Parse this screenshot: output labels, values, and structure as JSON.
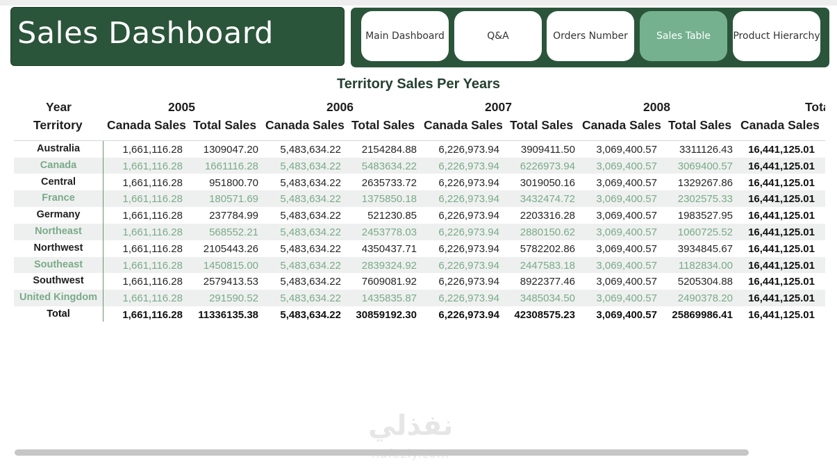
{
  "header": {
    "title": "Sales Dashboard"
  },
  "nav": {
    "buttons": [
      {
        "label": "Main Dashboard",
        "active": false
      },
      {
        "label": "Q&A",
        "active": false
      },
      {
        "label": "Orders Number",
        "active": false
      },
      {
        "label": "Sales Table",
        "active": true
      },
      {
        "label": "Product Hierarchy",
        "active": false
      }
    ]
  },
  "table": {
    "title": "Territory Sales Per Years",
    "year_label": "Year",
    "territory_label": "Territory",
    "years": [
      "2005",
      "2006",
      "2007",
      "2008",
      "Total"
    ],
    "subheaders": [
      "Canada Sales",
      "Total Sales",
      "Canada Sales",
      "Total Sales",
      "Canada Sales",
      "Total Sales",
      "Canada Sales",
      "Total Sales",
      "Canada Sales"
    ],
    "rows": [
      {
        "territory": "Australia",
        "values": [
          "1,661,116.28",
          "1309047.20",
          "5,483,634.22",
          "2154284.88",
          "6,226,973.94",
          "3909411.50",
          "3,069,400.57",
          "3311126.43",
          "16,441,125.01"
        ]
      },
      {
        "territory": "Canada",
        "values": [
          "1,661,116.28",
          "1661116.28",
          "5,483,634.22",
          "5483634.22",
          "6,226,973.94",
          "6226973.94",
          "3,069,400.57",
          "3069400.57",
          "16,441,125.01"
        ]
      },
      {
        "territory": "Central",
        "values": [
          "1,661,116.28",
          "951800.70",
          "5,483,634.22",
          "2635733.72",
          "6,226,973.94",
          "3019050.16",
          "3,069,400.57",
          "1329267.86",
          "16,441,125.01"
        ]
      },
      {
        "territory": "France",
        "values": [
          "1,661,116.28",
          "180571.69",
          "5,483,634.22",
          "1375850.18",
          "6,226,973.94",
          "3432474.72",
          "3,069,400.57",
          "2302575.33",
          "16,441,125.01"
        ]
      },
      {
        "territory": "Germany",
        "values": [
          "1,661,116.28",
          "237784.99",
          "5,483,634.22",
          "521230.85",
          "6,226,973.94",
          "2203316.28",
          "3,069,400.57",
          "1983527.95",
          "16,441,125.01"
        ]
      },
      {
        "territory": "Northeast",
        "values": [
          "1,661,116.28",
          "568552.21",
          "5,483,634.22",
          "2453778.03",
          "6,226,973.94",
          "2880150.62",
          "3,069,400.57",
          "1060725.52",
          "16,441,125.01"
        ]
      },
      {
        "territory": "Northwest",
        "values": [
          "1,661,116.28",
          "2105443.26",
          "5,483,634.22",
          "4350437.71",
          "6,226,973.94",
          "5782202.86",
          "3,069,400.57",
          "3934845.67",
          "16,441,125.01"
        ]
      },
      {
        "territory": "Southeast",
        "values": [
          "1,661,116.28",
          "1450815.00",
          "5,483,634.22",
          "2839324.92",
          "6,226,973.94",
          "2447583.18",
          "3,069,400.57",
          "1182834.00",
          "16,441,125.01"
        ]
      },
      {
        "territory": "Southwest",
        "values": [
          "1,661,116.28",
          "2579413.53",
          "5,483,634.22",
          "7609081.92",
          "6,226,973.94",
          "8922377.46",
          "3,069,400.57",
          "5205304.88",
          "16,441,125.01"
        ]
      },
      {
        "territory": "United Kingdom",
        "values": [
          "1,661,116.28",
          "291590.52",
          "5,483,634.22",
          "1435835.87",
          "6,226,973.94",
          "3485034.50",
          "3,069,400.57",
          "2490378.20",
          "16,441,125.01"
        ]
      }
    ],
    "total_row": {
      "territory": "Total",
      "values": [
        "1,661,116.28",
        "11336135.38",
        "5,483,634.22",
        "30859192.30",
        "6,226,973.94",
        "42308575.23",
        "3,069,400.57",
        "25869986.41",
        "16,441,125.01"
      ]
    }
  },
  "watermark": {
    "arabic": "نفذلي",
    "latin": "nafezly.com"
  }
}
